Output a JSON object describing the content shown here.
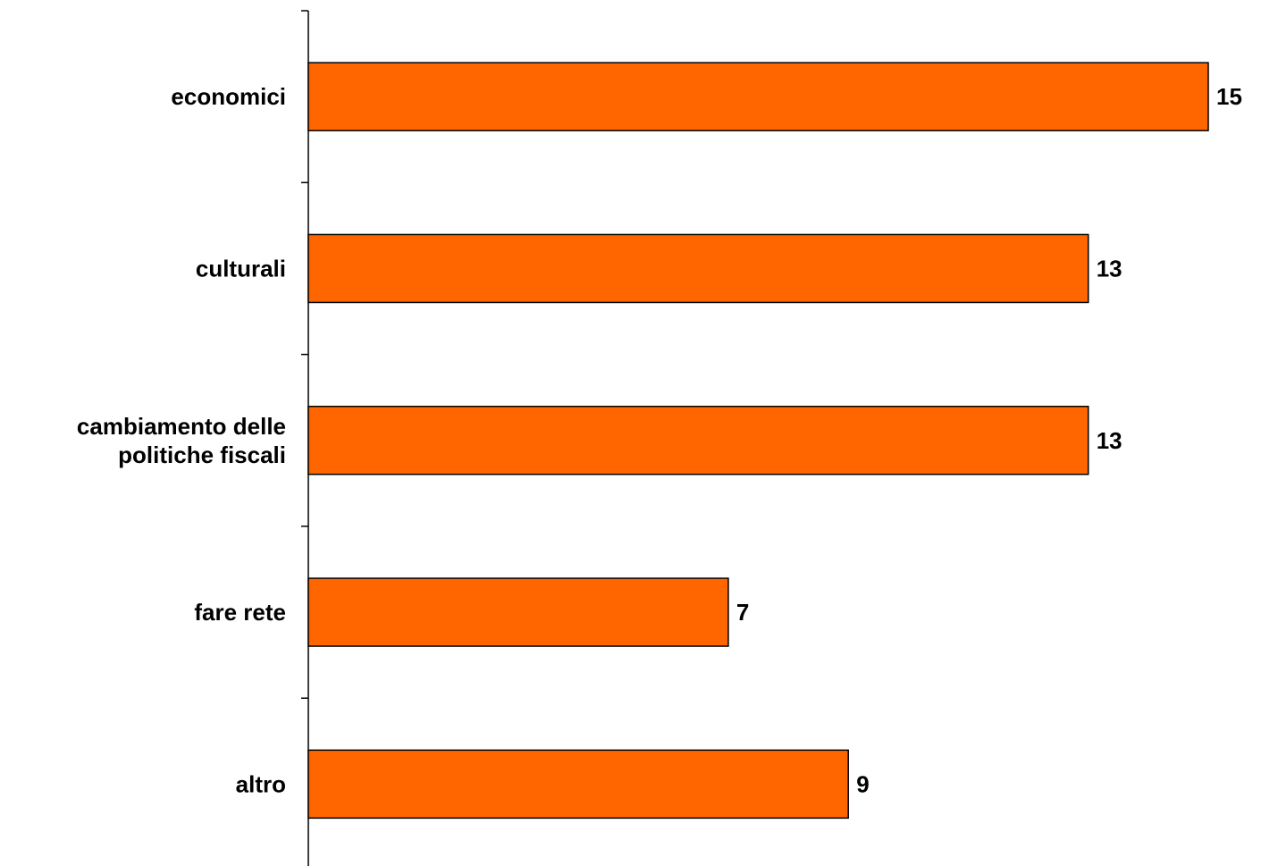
{
  "chart_data": {
    "type": "bar",
    "orientation": "horizontal",
    "categories": [
      [
        "economici"
      ],
      [
        "culturali"
      ],
      [
        "cambiamento delle",
        "politiche fiscali"
      ],
      [
        "fare rete"
      ],
      [
        "altro"
      ]
    ],
    "values": [
      15,
      13,
      13,
      7,
      9
    ],
    "xlim": [
      0,
      15
    ],
    "grid": false,
    "legend": "none",
    "bar_color": "#FF6600",
    "data_labels": true
  }
}
